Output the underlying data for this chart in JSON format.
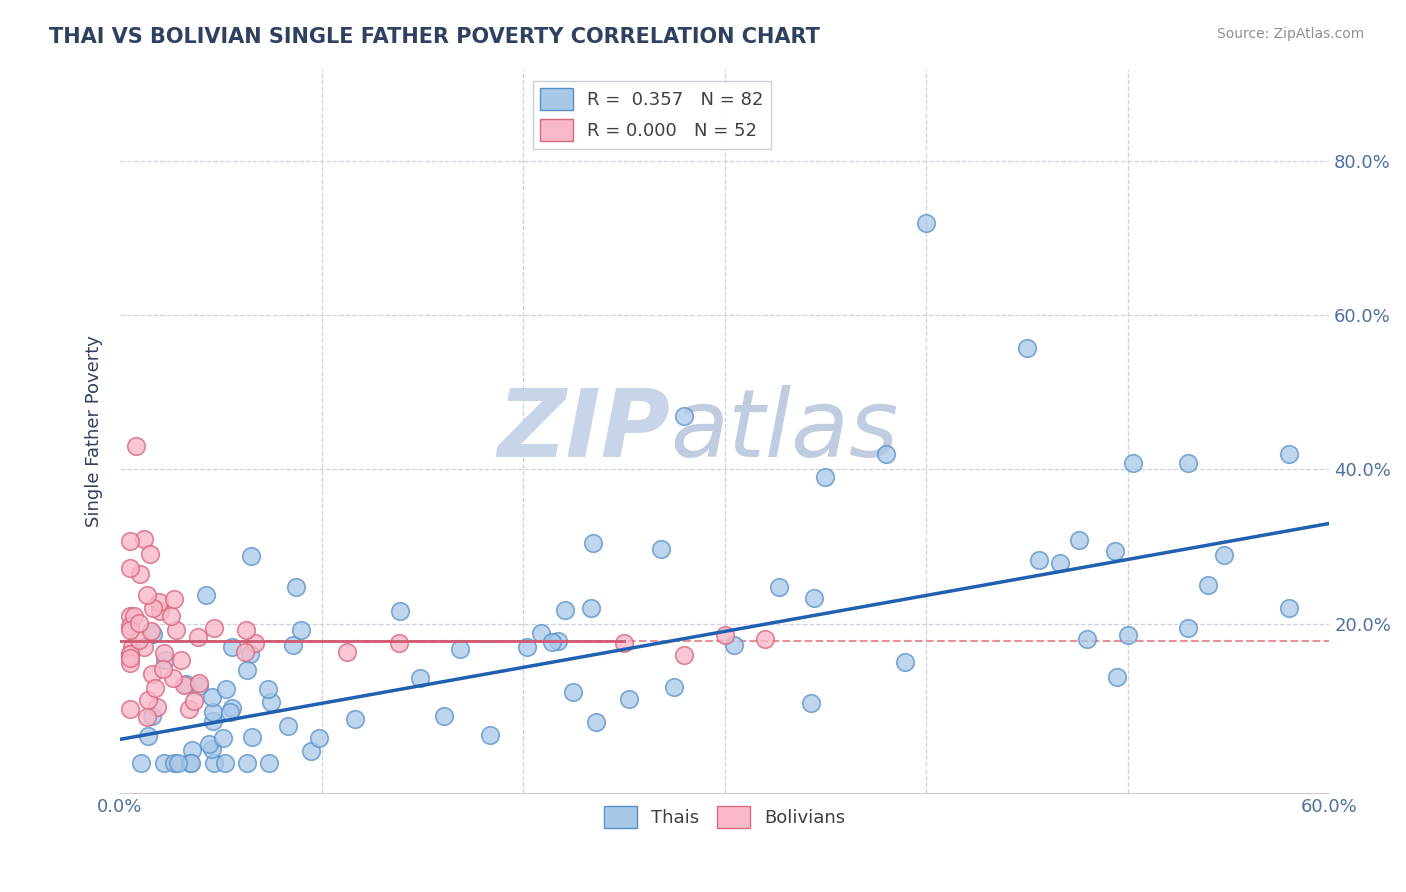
{
  "title": "THAI VS BOLIVIAN SINGLE FATHER POVERTY CORRELATION CHART",
  "source_text": "Source: ZipAtlas.com",
  "ylabel": "Single Father Poverty",
  "xlim": [
    0.0,
    0.6
  ],
  "ylim": [
    -0.02,
    0.92
  ],
  "thai_R": 0.357,
  "thai_N": 82,
  "bolivian_R": 0.0,
  "bolivian_N": 52,
  "thai_color": "#a8c8e8",
  "thai_edge_color": "#5590c8",
  "bolivian_color": "#f8b8c8",
  "bolivian_edge_color": "#d86880",
  "thai_line_color": "#2060b0",
  "bolivian_line_color_solid": "#d05870",
  "bolivian_line_color_dash": "#e89098",
  "watermark_zip_color": "#c8d4e8",
  "watermark_atlas_color": "#c0cce0",
  "grid_color": "#c8ccd8",
  "background_color": "#ffffff",
  "title_color": "#304060",
  "axis_label_color": "#304060",
  "tick_label_color": "#5070a0",
  "source_color": "#909090",
  "legend_text_color": "#404040"
}
